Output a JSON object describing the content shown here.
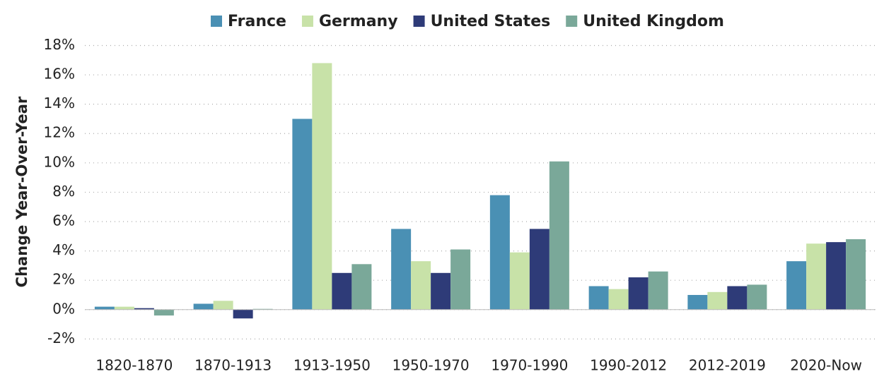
{
  "chart_data": {
    "type": "bar",
    "y_label": "Change Year-Over-Year",
    "categories": [
      "1820-1870",
      "1870-1913",
      "1913-1950",
      "1950-1970",
      "1970-1990",
      "1990-2012",
      "2012-2019",
      "2020-Now"
    ],
    "series": [
      {
        "name": "France",
        "color": "#4a90b4",
        "values": [
          0.2,
          0.4,
          13.0,
          5.5,
          7.8,
          1.6,
          1.0,
          3.3
        ]
      },
      {
        "name": "Germany",
        "color": "#c8e2a8",
        "values": [
          0.2,
          0.6,
          16.8,
          3.3,
          3.9,
          1.4,
          1.2,
          4.5
        ]
      },
      {
        "name": "United States",
        "color": "#2e3b78",
        "values": [
          0.1,
          -0.6,
          2.5,
          2.5,
          5.5,
          2.2,
          1.6,
          4.6
        ]
      },
      {
        "name": "United Kingdom",
        "color": "#7aa899",
        "values": [
          -0.4,
          0.05,
          3.1,
          4.1,
          10.1,
          2.6,
          1.7,
          4.8
        ]
      }
    ],
    "ylim": [
      -2.8,
      18.6
    ],
    "yticks": [
      {
        "value": -2,
        "label": "-2%"
      },
      {
        "value": 0,
        "label": "0%"
      },
      {
        "value": 2,
        "label": "2%"
      },
      {
        "value": 4,
        "label": "4%"
      },
      {
        "value": 6,
        "label": "6%"
      },
      {
        "value": 8,
        "label": "8%"
      },
      {
        "value": 10,
        "label": "10%"
      },
      {
        "value": 12,
        "label": "12%"
      },
      {
        "value": 14,
        "label": "14%"
      },
      {
        "value": 16,
        "label": "16%"
      },
      {
        "value": 18,
        "label": "18%"
      }
    ],
    "grid": true,
    "legend": "top"
  }
}
